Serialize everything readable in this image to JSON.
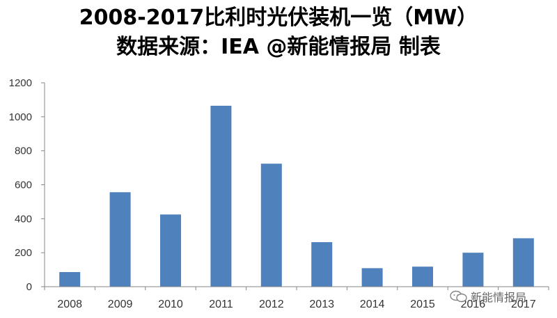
{
  "header": {
    "title_line1": "2008-2017比利时光伏装机一览（MW）",
    "title_line2": "数据来源：IEA @新能情报局 制表"
  },
  "watermark": {
    "text": "新能情报局",
    "icon": "wechat-icon"
  },
  "colors": {
    "bar": "#4F81BD",
    "axis": "#868686"
  },
  "chart_data": {
    "type": "bar",
    "title": "2008-2017比利时光伏装机一览（MW）",
    "xlabel": "",
    "ylabel": "",
    "categories": [
      "2008",
      "2009",
      "2010",
      "2011",
      "2012",
      "2013",
      "2014",
      "2015",
      "2016",
      "2017"
    ],
    "values": [
      86,
      556,
      425,
      1065,
      724,
      262,
      109,
      118,
      200,
      285
    ],
    "ylim": [
      0,
      1200
    ],
    "yticks": [
      0,
      200,
      400,
      600,
      800,
      1000,
      1200
    ],
    "grid": false,
    "legend": "none"
  }
}
